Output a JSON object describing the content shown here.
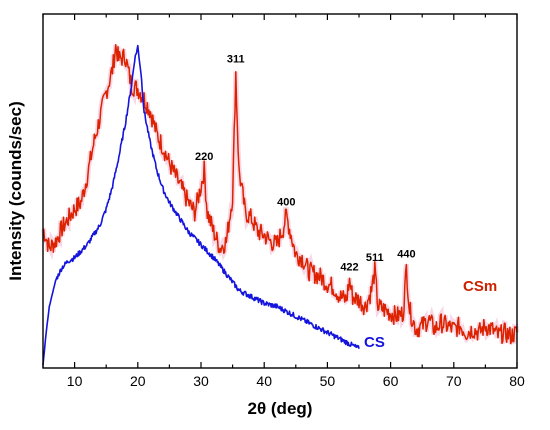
{
  "chart_data": {
    "type": "line",
    "title": "",
    "xlabel": "2θ (deg)",
    "ylabel": "Intensity (counds/sec)",
    "xlim": [
      5,
      80
    ],
    "ylim": [
      0,
      100
    ],
    "y_ticks_shown": false,
    "x_ticks": [
      "10",
      "20",
      "30",
      "40",
      "50",
      "60",
      "70",
      "80"
    ],
    "grid": false,
    "series": [
      {
        "name": "CSm",
        "color": "#dd2200",
        "x": [
          5,
          6,
          7,
          8,
          9,
          10,
          11,
          12,
          13,
          14,
          15,
          16,
          16.5,
          17,
          18,
          19,
          20,
          21,
          22,
          23,
          24,
          25,
          26,
          27,
          28,
          29,
          30,
          30.5,
          31,
          32,
          33,
          34,
          35,
          35.5,
          36,
          37,
          38,
          39,
          40,
          41,
          42,
          43,
          43.5,
          44,
          45,
          46,
          47,
          48,
          49,
          50,
          51,
          52,
          53,
          53.5,
          54,
          55,
          56,
          57,
          57.5,
          58,
          59,
          60,
          61,
          62,
          62.5,
          63,
          64,
          65,
          66,
          67,
          68,
          69,
          70,
          71,
          72,
          73,
          74,
          75,
          76,
          77,
          78,
          79,
          80
        ],
        "y": [
          42,
          36,
          38,
          42,
          45,
          48,
          50,
          58,
          68,
          76,
          84,
          91,
          98,
          94,
          95,
          86,
          85,
          82,
          78,
          71,
          67,
          62,
          58,
          54,
          50,
          47,
          55,
          60,
          47,
          41,
          36,
          38,
          52,
          90,
          60,
          47,
          45,
          41,
          40,
          38,
          37,
          42,
          46,
          42,
          34,
          33,
          29,
          28,
          27,
          25,
          24,
          21,
          20,
          26,
          21,
          20,
          18,
          23,
          29,
          18,
          17,
          16,
          15,
          16,
          30,
          17,
          11,
          12,
          14,
          11,
          13,
          12,
          11,
          12,
          10,
          11,
          10,
          12,
          11,
          9,
          10,
          9,
          10
        ]
      },
      {
        "name": "CS",
        "color": "#1414dd",
        "x": [
          5,
          5.5,
          6,
          7,
          8,
          9,
          10,
          11,
          12,
          13,
          14,
          15,
          16,
          17,
          18,
          19,
          19.5,
          20,
          20.5,
          21,
          22,
          23,
          24,
          25,
          26,
          27,
          28,
          29,
          30,
          32,
          34,
          36,
          38,
          40,
          42,
          44,
          46,
          48,
          50,
          52,
          54,
          55
        ],
        "y": [
          0,
          10,
          18,
          26,
          30,
          32,
          33,
          35,
          37,
          40,
          43,
          48,
          55,
          64,
          74,
          86,
          94,
          98,
          90,
          78,
          68,
          60,
          54,
          50,
          47,
          44,
          41,
          39,
          37,
          33,
          28,
          23,
          21,
          19,
          18,
          16,
          14,
          12,
          10,
          8,
          6,
          5
        ]
      }
    ],
    "peak_labels": [
      {
        "text": "220",
        "x": 30.5,
        "y": 60
      },
      {
        "text": "311",
        "x": 35.5,
        "y": 90
      },
      {
        "text": "400",
        "x": 43.5,
        "y": 46
      },
      {
        "text": "422",
        "x": 53.5,
        "y": 26
      },
      {
        "text": "511",
        "x": 57.5,
        "y": 29
      },
      {
        "text": "440",
        "x": 62.5,
        "y": 30
      }
    ],
    "series_labels": [
      {
        "text": "CSm",
        "color": "#cc2200"
      },
      {
        "text": "CS",
        "color": "#1414dd"
      }
    ]
  }
}
